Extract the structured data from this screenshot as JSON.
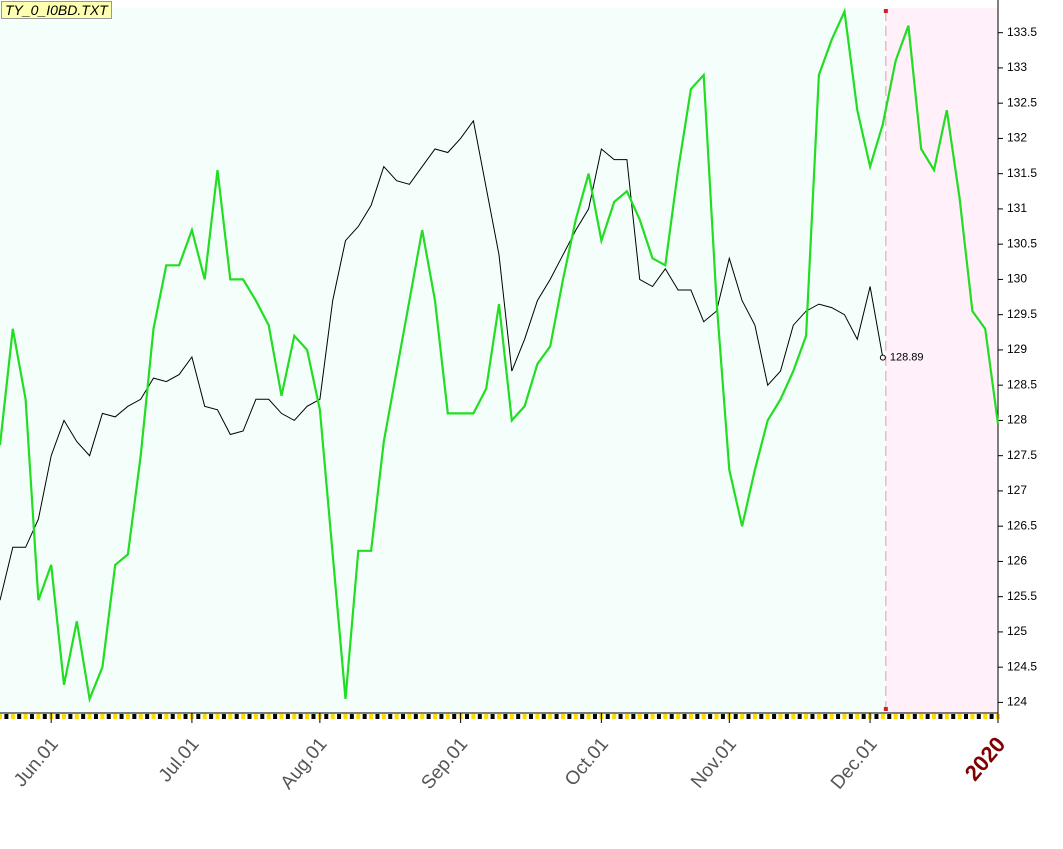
{
  "chart_data": {
    "type": "line",
    "title": "TY_0_I0BD.TXT",
    "categories": [
      null,
      null,
      null,
      null,
      "Jun.01",
      null,
      null,
      null,
      null,
      null,
      null,
      null,
      null,
      null,
      null,
      "Jul.01",
      null,
      null,
      null,
      null,
      null,
      null,
      null,
      null,
      null,
      "Aug.01",
      null,
      null,
      null,
      null,
      null,
      null,
      null,
      null,
      null,
      null,
      "Sep.01",
      null,
      null,
      null,
      null,
      null,
      null,
      null,
      null,
      null,
      null,
      "Oct.01",
      null,
      null,
      null,
      null,
      null,
      null,
      null,
      null,
      null,
      "Nov.01",
      null,
      null,
      null,
      null,
      null,
      null,
      null,
      null,
      null,
      null,
      "Dec.01",
      null,
      null,
      null,
      null,
      null,
      null,
      null,
      null,
      null,
      "2020"
    ],
    "series": [
      {
        "color": "#000000",
        "values": [
          125.45,
          126.2,
          126.2,
          126.6,
          127.5,
          128.0,
          127.7,
          127.5,
          128.1,
          128.05,
          128.2,
          128.3,
          128.6,
          128.55,
          128.65,
          128.9,
          128.2,
          128.15,
          127.8,
          127.85,
          128.3,
          128.3,
          128.1,
          128.0,
          128.2,
          128.3,
          129.7,
          130.55,
          130.75,
          131.05,
          131.6,
          131.4,
          131.35,
          131.6,
          131.85,
          131.8,
          132.0,
          132.25,
          131.3,
          130.35,
          128.7,
          129.15,
          129.7,
          130.0,
          130.35,
          130.7,
          131.0,
          131.85,
          131.7,
          131.7,
          130.0,
          129.9,
          130.15,
          129.85,
          129.85,
          129.4,
          129.55,
          130.3,
          129.7,
          129.35,
          128.5,
          128.7,
          129.35,
          129.55,
          129.65,
          129.6,
          129.5,
          129.15,
          129.9,
          128.89,
          null,
          null,
          null,
          null,
          null,
          null,
          null,
          null,
          null
        ]
      },
      {
        "color": "#22dd22",
        "values": [
          127.65,
          129.3,
          128.3,
          125.45,
          125.95,
          124.25,
          125.15,
          124.05,
          124.5,
          125.95,
          126.1,
          127.5,
          129.3,
          130.2,
          130.2,
          130.7,
          130.0,
          131.55,
          130.0,
          130.0,
          129.7,
          129.35,
          128.35,
          129.2,
          129.0,
          128.15,
          126.1,
          124.05,
          126.15,
          126.15,
          127.7,
          128.7,
          129.7,
          130.7,
          129.7,
          128.1,
          128.1,
          128.1,
          128.45,
          129.65,
          128.0,
          128.2,
          128.8,
          129.05,
          130.0,
          130.85,
          131.5,
          130.55,
          131.1,
          131.25,
          130.85,
          130.3,
          130.2,
          131.55,
          132.7,
          132.9,
          129.7,
          127.3,
          126.5,
          127.3,
          128.0,
          128.3,
          128.7,
          129.2,
          132.9,
          133.4,
          133.8,
          132.4,
          131.6,
          132.2,
          133.1,
          133.6,
          131.85,
          131.55,
          132.4,
          131.15,
          129.55,
          129.3,
          127.95
        ]
      }
    ],
    "ylim": [
      123.85,
      133.85
    ],
    "yticks": [
      124,
      124.5,
      125,
      125.5,
      126,
      126.5,
      127,
      127.5,
      128,
      128.5,
      129,
      129.5,
      130,
      130.5,
      131,
      131.5,
      132,
      132.5,
      133,
      133.5
    ]
  }
}
